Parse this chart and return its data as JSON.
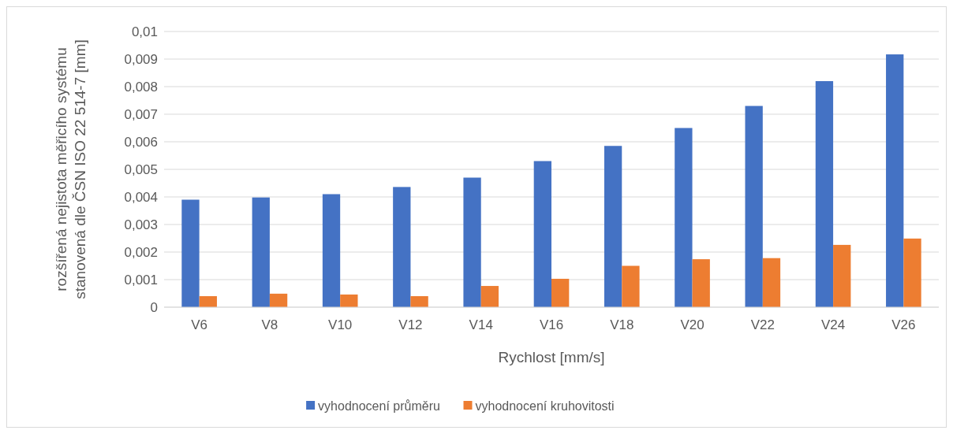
{
  "chart_data": {
    "type": "bar",
    "categories": [
      "V6",
      "V8",
      "V10",
      "V12",
      "V14",
      "V16",
      "V18",
      "V20",
      "V22",
      "V24",
      "V26"
    ],
    "series": [
      {
        "name": "vyhodnocení průměru",
        "color": "#4472c4",
        "values": [
          0.0039,
          0.00398,
          0.0041,
          0.00436,
          0.0047,
          0.0053,
          0.00585,
          0.0065,
          0.0073,
          0.0082,
          0.00917
        ]
      },
      {
        "name": "vyhodnocení kruhovitosti",
        "color": "#ed7d31",
        "values": [
          0.0004,
          0.00049,
          0.00046,
          0.0004,
          0.00077,
          0.00103,
          0.0015,
          0.00174,
          0.00178,
          0.00226,
          0.00249
        ]
      }
    ],
    "xlabel": "Rychlost [mm/s]",
    "ylabel": "rozšířená nejistota měřicího systému\nstanovená dle ČSN ISO 22 514-7 [mm]",
    "ylim": [
      0,
      0.01
    ],
    "yticks": [
      0,
      {
        "value": 0.001,
        "label": "0,001"
      },
      {
        "value": 0.002,
        "label": "0,002"
      },
      {
        "value": 0.003,
        "label": "0,003"
      },
      {
        "value": 0.004,
        "label": "0,004"
      },
      {
        "value": 0.005,
        "label": "0,005"
      },
      {
        "value": 0.006,
        "label": "0,006"
      },
      {
        "value": 0.007,
        "label": "0,007"
      },
      {
        "value": 0.008,
        "label": "0,008"
      },
      {
        "value": 0.009,
        "label": "0,009"
      },
      {
        "value": 0.01,
        "label": "0,01"
      }
    ],
    "grid": "y",
    "legend": "bottom"
  }
}
